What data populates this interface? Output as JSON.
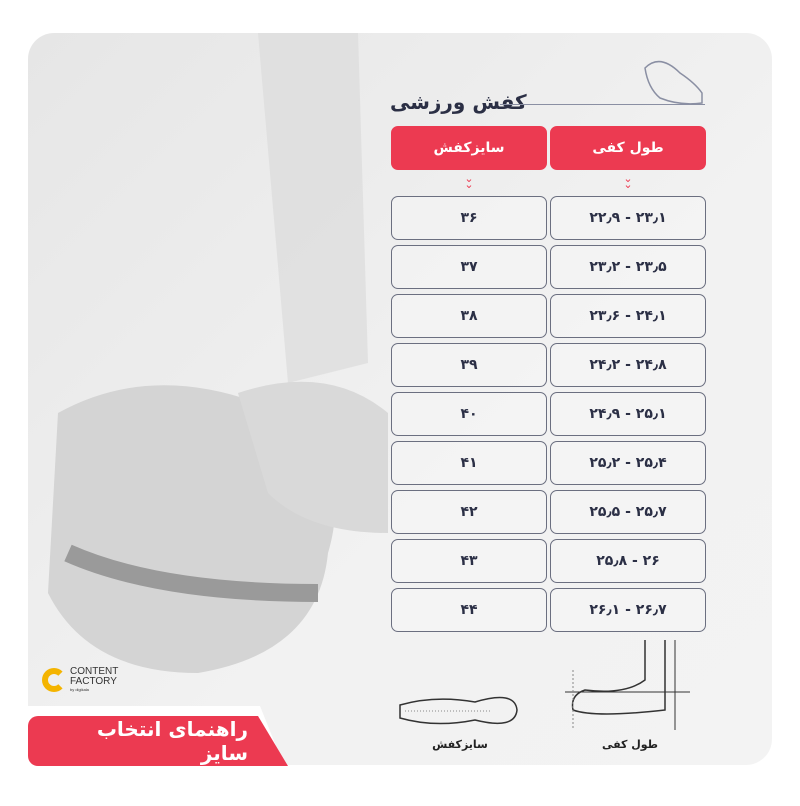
{
  "title": "کفش ورزشی",
  "headers": {
    "foot_length": "طول کفی",
    "shoe_size": "سایزکفش"
  },
  "rows": [
    {
      "foot_length": "۲۲٫۹ - ۲۳٫۱",
      "shoe_size": "۳۶"
    },
    {
      "foot_length": "۲۳٫۲ - ۲۳٫۵",
      "shoe_size": "۳۷"
    },
    {
      "foot_length": "۲۳٫۶ - ۲۴٫۱",
      "shoe_size": "۳۸"
    },
    {
      "foot_length": "۲۴٫۲ - ۲۴٫۸",
      "shoe_size": "۳۹"
    },
    {
      "foot_length": "۲۴٫۹ - ۲۵٫۱",
      "shoe_size": "۴۰"
    },
    {
      "foot_length": "۲۵٫۲ - ۲۵٫۴",
      "shoe_size": "۴۱"
    },
    {
      "foot_length": "۲۵٫۵ - ۲۵٫۷",
      "shoe_size": "۴۲"
    },
    {
      "foot_length": "۲۵٫۸ - ۲۶",
      "shoe_size": "۴۳"
    },
    {
      "foot_length": "۲۶٫۱ - ۲۶٫۷",
      "shoe_size": "۴۴"
    }
  ],
  "banner": "راهنمای انتخاب سایز",
  "logo": {
    "line1": "CONTENT",
    "line2": "FACTORY",
    "line3": "by digikala"
  },
  "diagram_labels": {
    "shoe_size": "سایزکفش",
    "foot_length": "طول کفی"
  },
  "colors": {
    "accent": "#ec3a51",
    "text": "#2b2f45",
    "logo": "#f4b400"
  }
}
